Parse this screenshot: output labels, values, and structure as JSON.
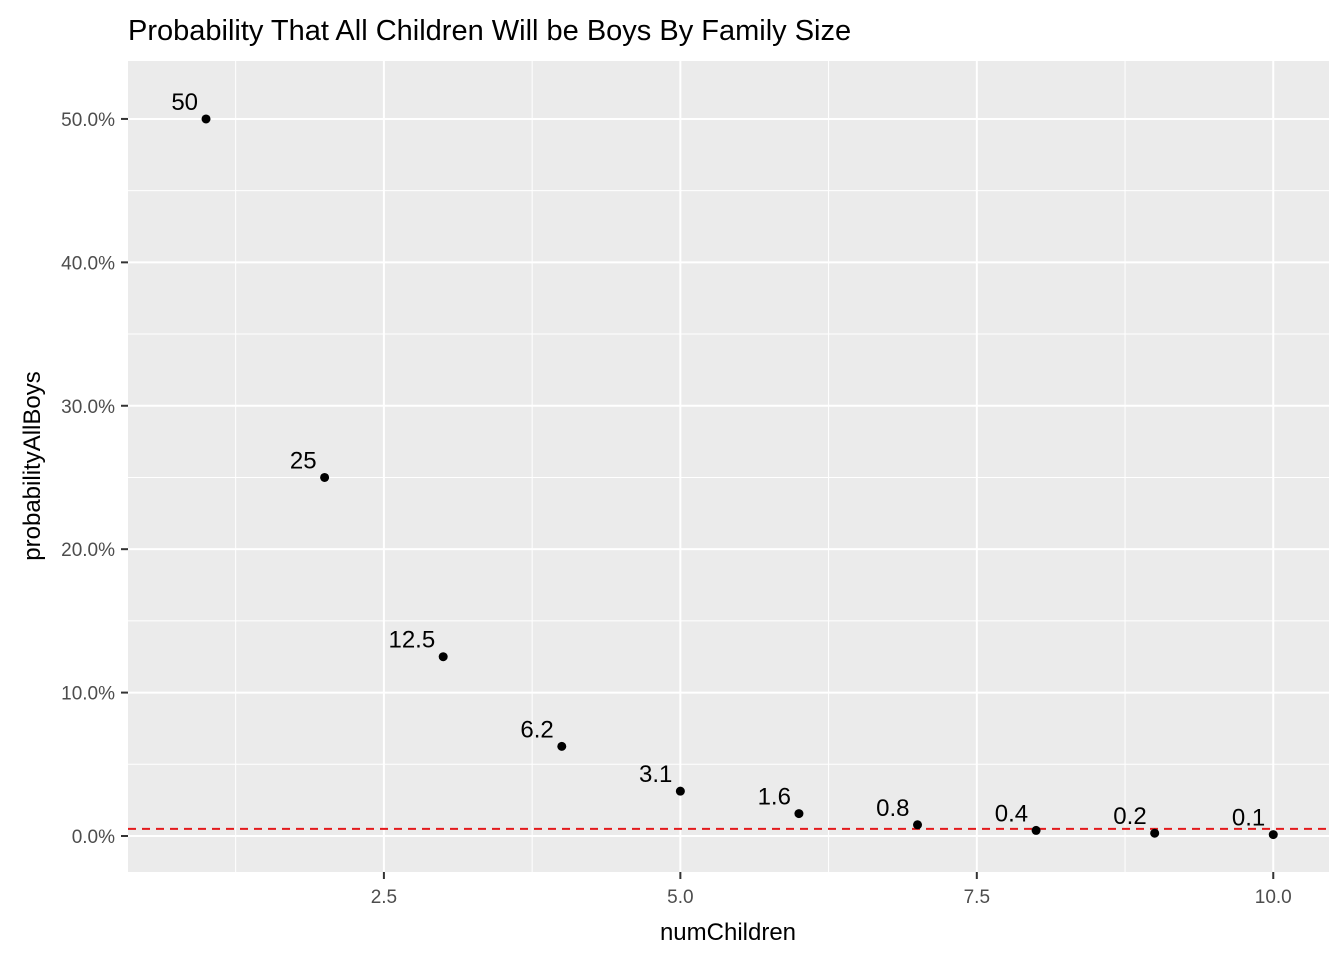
{
  "chart_data": {
    "type": "scatter",
    "title": "Probability That All Children Will be Boys By Family Size",
    "xlabel": "numChildren",
    "ylabel": "probabilityAllBoys",
    "x": [
      1,
      2,
      3,
      4,
      5,
      6,
      7,
      8,
      9,
      10
    ],
    "y": [
      50.0,
      25.0,
      12.5,
      6.25,
      3.125,
      1.5625,
      0.78125,
      0.390625,
      0.1953125,
      0.09765625
    ],
    "point_labels": [
      "50",
      "25",
      "12.5",
      "6.2",
      "3.1",
      "1.6",
      "0.8",
      "0.4",
      "0.2",
      "0.1"
    ],
    "xlim": [
      0.342,
      10.47
    ],
    "ylim": [
      -2.51,
      54.04
    ],
    "x_ticks": [
      2.5,
      5.0,
      7.5,
      10.0
    ],
    "x_tick_labels": [
      "2.5",
      "5.0",
      "7.5",
      "10.0"
    ],
    "x_minor_ticks": [
      1.25,
      3.75,
      6.25,
      8.75
    ],
    "y_ticks": [
      0,
      10,
      20,
      30,
      40,
      50
    ],
    "y_tick_labels": [
      "0.0%",
      "10.0%",
      "20.0%",
      "30.0%",
      "40.0%",
      "50.0%"
    ],
    "y_minor_ticks": [
      5,
      15,
      25,
      35,
      45
    ],
    "reference_line": {
      "y": 0.5,
      "style": "dashed",
      "color": "#e41a1c"
    },
    "grid": true,
    "legend": "none",
    "colors": {
      "panel": "#ebebeb",
      "grid": "#ffffff",
      "point": "#000000"
    }
  }
}
